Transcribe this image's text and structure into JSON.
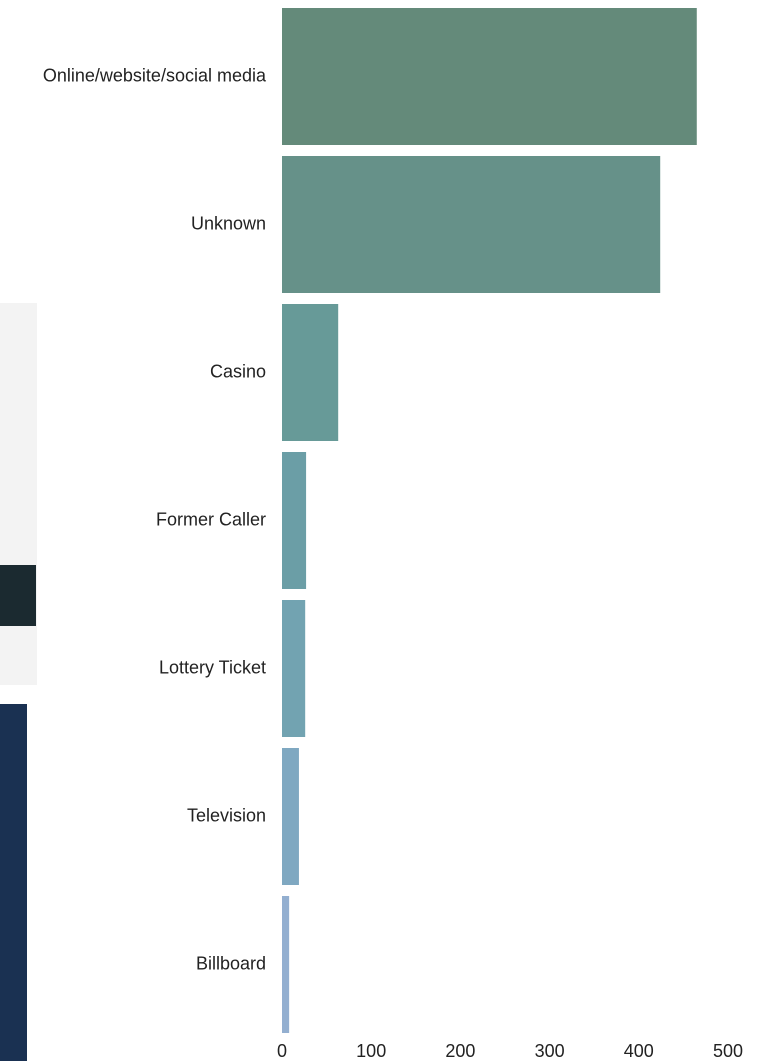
{
  "chart_data": {
    "type": "bar",
    "orientation": "horizontal",
    "categories": [
      "Online/website/social media",
      "Unknown",
      "Casino",
      "Former Caller",
      "Lottery Ticket",
      "Television",
      "Billboard"
    ],
    "values": [
      465,
      424,
      63,
      27,
      26,
      19,
      8
    ],
    "colors": [
      "#648a7a",
      "#669189",
      "#679a98",
      "#6b9ea6",
      "#72a3b1",
      "#7fa8c1",
      "#93afd0"
    ],
    "xlim": [
      0,
      500
    ],
    "xticks": [
      0,
      100,
      200,
      300,
      400,
      500
    ],
    "grid": false
  }
}
